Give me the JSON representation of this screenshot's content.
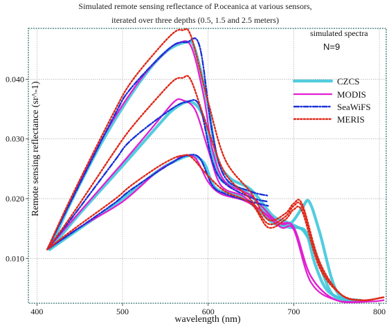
{
  "chart_data": {
    "type": "line",
    "title_lines": [
      "Simulated remote sensing reflectance of P.oceanica at various sensors,",
      "iterated over three depths (0.5, 1.5 and 2.5 meters)"
    ],
    "xlabel": "wavelength (nm)",
    "ylabel": "Remote sensing reflectance (sr^-1)",
    "xlim": [
      390,
      808
    ],
    "ylim": [
      0.0025,
      0.0485
    ],
    "xticks": [
      400,
      500,
      600,
      700,
      800
    ],
    "yticks": [
      0.01,
      0.02,
      0.03,
      0.04
    ],
    "ytick_labels": [
      "0.010",
      "0.020",
      "0.030",
      "0.040"
    ],
    "grid": true,
    "legend_position": "right",
    "annotation_lines": [
      "simulated spectra",
      "N=9"
    ],
    "series": [
      {
        "name": "CZCS",
        "color": "#3ec8dc",
        "style": "solid-thick",
        "curves": [
          {
            "x": [
              415,
              440,
              480,
              520,
              550,
              575,
              585,
              600,
              610,
              625,
              650,
              675,
              690,
              705,
              715,
              725,
              740,
              765,
              778
            ],
            "y": [
              0.0115,
              0.0195,
              0.0305,
              0.0395,
              0.0445,
              0.0462,
              0.0448,
              0.0355,
              0.027,
              0.0235,
              0.0215,
              0.0172,
              0.0162,
              0.0152,
              0.0142,
              0.009,
              0.0045,
              0.003,
              0.003
            ]
          },
          {
            "x": [
              415,
              450,
              500,
              540,
              560,
              580,
              595,
              605,
              615,
              630,
              650,
              675,
              695,
              710,
              718,
              730,
              750,
              775
            ],
            "y": [
              0.0115,
              0.0175,
              0.0255,
              0.032,
              0.035,
              0.0362,
              0.0335,
              0.027,
              0.0232,
              0.0222,
              0.0205,
              0.0165,
              0.0158,
              0.0185,
              0.0195,
              0.0145,
              0.0045,
              0.003
            ]
          },
          {
            "x": [
              415,
              450,
              500,
              540,
              560,
              580,
              595,
              605,
              615,
              630,
              650,
              675,
              695,
              710,
              725,
              745,
              770
            ],
            "y": [
              0.0115,
              0.015,
              0.02,
              0.0245,
              0.0262,
              0.0272,
              0.026,
              0.0225,
              0.0212,
              0.0208,
              0.0192,
              0.016,
              0.0152,
              0.0148,
              0.011,
              0.004,
              0.003
            ]
          }
        ]
      },
      {
        "name": "MODIS",
        "color": "#e020d0",
        "style": "solid",
        "curves": [
          {
            "x": [
              412,
              440,
              480,
              520,
              550,
              565,
              580,
              595,
              605,
              620,
              650,
              680,
              700,
              720,
              750,
              790,
              805
            ],
            "y": [
              0.0115,
              0.0198,
              0.031,
              0.0398,
              0.0445,
              0.046,
              0.0455,
              0.037,
              0.0282,
              0.0228,
              0.0205,
              0.0162,
              0.0152,
              0.007,
              0.003,
              0.0028,
              0.003
            ]
          },
          {
            "x": [
              412,
              450,
              500,
              540,
              560,
              570,
              585,
              600,
              615,
              640,
              660,
              685,
              700,
              720,
              750,
              790
            ],
            "y": [
              0.0115,
              0.0178,
              0.026,
              0.0328,
              0.0362,
              0.0365,
              0.0348,
              0.0282,
              0.0222,
              0.0205,
              0.0182,
              0.0158,
              0.0152,
              0.007,
              0.003,
              0.0028
            ]
          },
          {
            "x": [
              412,
              450,
              500,
              540,
              560,
              570,
              585,
              600,
              615,
              640,
              660,
              685,
              700,
              720,
              750,
              790
            ],
            "y": [
              0.0115,
              0.0152,
              0.0195,
              0.0245,
              0.0262,
              0.0272,
              0.0268,
              0.0228,
              0.0208,
              0.0198,
              0.0182,
              0.0152,
              0.0148,
              0.006,
              0.003,
              0.0028
            ]
          }
        ]
      },
      {
        "name": "SeaWiFS",
        "color": "#1a30d8",
        "style": "dashdot",
        "curves": [
          {
            "x": [
              412,
              443,
              490,
              510,
              555,
              575,
              590,
              605,
              620,
              650,
              670
            ],
            "y": [
              0.0115,
              0.0205,
              0.0338,
              0.0385,
              0.0452,
              0.0462,
              0.0455,
              0.031,
              0.0235,
              0.0212,
              0.0205
            ]
          },
          {
            "x": [
              412,
              443,
              490,
              510,
              555,
              575,
              590,
              605,
              620,
              650,
              670
            ],
            "y": [
              0.0115,
              0.0172,
              0.0262,
              0.0298,
              0.0348,
              0.0362,
              0.0355,
              0.0262,
              0.0225,
              0.0202,
              0.0195
            ]
          },
          {
            "x": [
              412,
              443,
              490,
              510,
              555,
              575,
              590,
              605,
              620,
              650,
              670
            ],
            "y": [
              0.0115,
              0.0145,
              0.0192,
              0.0215,
              0.0258,
              0.0272,
              0.0268,
              0.0222,
              0.0208,
              0.0195,
              0.0188
            ]
          }
        ]
      },
      {
        "name": "MERIS",
        "color": "#e02818",
        "style": "dotted",
        "curves": [
          {
            "x": [
              412,
              442,
              490,
              510,
              540,
              560,
              570,
              580,
              600,
              620,
              650,
              670,
              690,
              700,
              710,
              730,
              755,
              780,
              805
            ],
            "y": [
              0.0115,
              0.0208,
              0.0345,
              0.0395,
              0.0448,
              0.0478,
              0.0482,
              0.0472,
              0.0362,
              0.0265,
              0.021,
              0.0165,
              0.0175,
              0.0192,
              0.019,
              0.0095,
              0.004,
              0.003,
              0.0035
            ]
          },
          {
            "x": [
              412,
              442,
              490,
              510,
              540,
              560,
              570,
              580,
              600,
              620,
              650,
              670,
              690,
              700,
              710,
              730,
              755,
              780,
              805
            ],
            "y": [
              0.0115,
              0.0175,
              0.0278,
              0.0318,
              0.0368,
              0.0398,
              0.0402,
              0.0398,
              0.0315,
              0.0242,
              0.0198,
              0.0158,
              0.017,
              0.0188,
              0.0185,
              0.009,
              0.004,
              0.003,
              0.0035
            ]
          },
          {
            "x": [
              412,
              442,
              490,
              510,
              540,
              560,
              570,
              580,
              600,
              620,
              650,
              670,
              690,
              700,
              710,
              730,
              755,
              780,
              805
            ],
            "y": [
              0.0115,
              0.0148,
              0.0198,
              0.0222,
              0.0252,
              0.0268,
              0.0272,
              0.027,
              0.0238,
              0.0212,
              0.0192,
              0.0152,
              0.0165,
              0.0182,
              0.0178,
              0.0085,
              0.004,
              0.003,
              0.0035
            ]
          }
        ]
      }
    ]
  }
}
